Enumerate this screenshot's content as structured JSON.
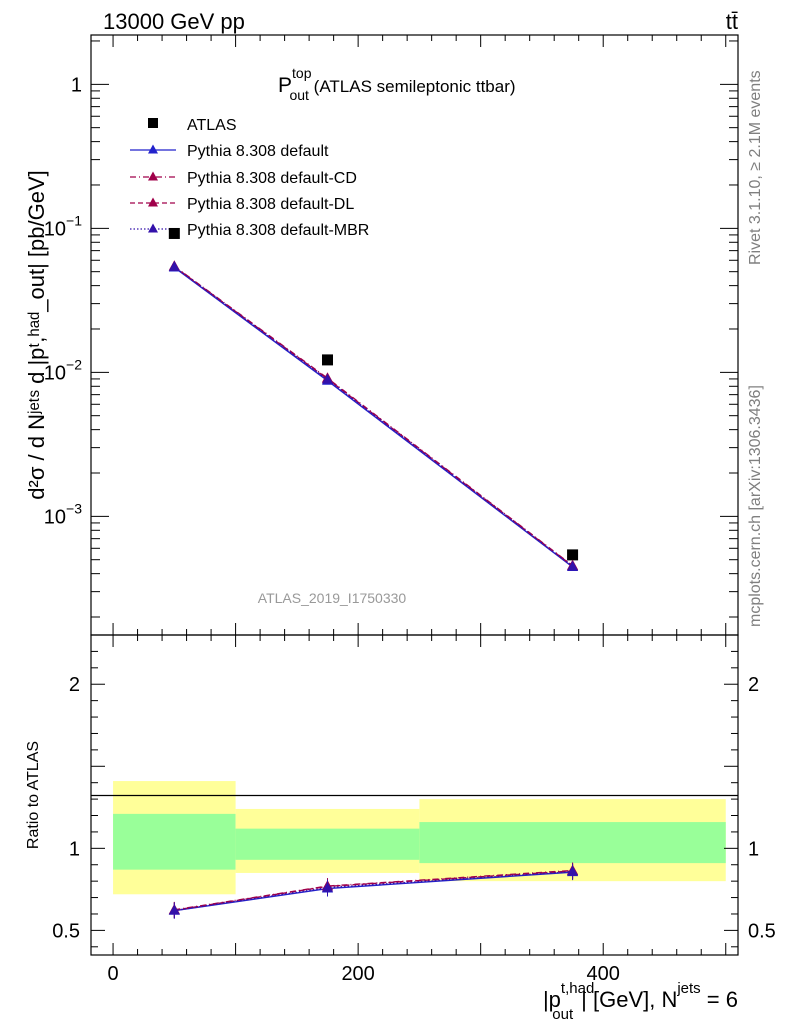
{
  "header": {
    "energy": "13000 GeV pp",
    "process": "tt̄"
  },
  "side_labels": {
    "rivet": "Rivet 3.1.10, ≥ 2.1M events",
    "mcplots": "mcplots.cern.ch [arXiv:1306.3436]"
  },
  "chart_data": [
    {
      "type": "scatter",
      "panel": "main",
      "title": {
        "main": "P",
        "sup": "top",
        "sub": "out",
        "rest": " (ATLAS semileptonic ttbar)"
      },
      "watermark": "ATLAS_2019_I1750330",
      "ylabel": "d²σ / d Nʲᵉᵗˢ d |pᵗ,ʰᵃᵈ_out| [pb/GeV]",
      "yscale": "log",
      "ylim": [
        0.00015,
        2.2
      ],
      "xlim": [
        -18,
        510
      ],
      "y_tick_labels": [
        {
          "value": 1,
          "base": "1",
          "exp": ""
        },
        {
          "value": 0.1,
          "base": "10",
          "exp": "−1"
        },
        {
          "value": 0.01,
          "base": "10",
          "exp": "−2"
        },
        {
          "value": 0.001,
          "base": "10",
          "exp": "−3"
        }
      ],
      "legend_position": "top-left",
      "series": [
        {
          "name": "ATLAS",
          "color": "#000000",
          "marker": "square",
          "x": [
            50,
            175,
            375
          ],
          "y": [
            0.0921,
            0.0122,
            0.00054
          ]
        },
        {
          "name": "Pythia 8.308 default",
          "color": "#2222cc",
          "line": "solid",
          "marker": "triangle",
          "x": [
            50,
            175,
            375
          ],
          "y": [
            0.0535,
            0.00875,
            0.000445
          ]
        },
        {
          "name": "Pythia 8.308 default-CD",
          "color": "#a0004a",
          "line": "dashdot",
          "marker": "triangle",
          "x": [
            50,
            175,
            375
          ],
          "y": [
            0.0545,
            0.0091,
            0.000455
          ]
        },
        {
          "name": "Pythia 8.308 default-DL",
          "color": "#a0004a",
          "line": "dashed",
          "marker": "triangle",
          "x": [
            50,
            175,
            375
          ],
          "y": [
            0.0542,
            0.009,
            0.000452
          ]
        },
        {
          "name": "Pythia 8.308 default-MBR",
          "color": "#3311aa",
          "line": "dotted",
          "marker": "triangle",
          "x": [
            50,
            175,
            375
          ],
          "y": [
            0.054,
            0.0089,
            0.000448
          ]
        }
      ]
    },
    {
      "type": "line",
      "panel": "ratio",
      "ylabel": "Ratio to ATLAS",
      "ylim": [
        0.35,
        2.3
      ],
      "xlim": [
        -18,
        510
      ],
      "xlabel": {
        "p": "|p",
        "sup": "t,had",
        "sub": "out",
        "rest": "| [GeV], N",
        "sup2": "jets",
        "tail": " = 6"
      },
      "x_tick_labels": [
        {
          "value": 0,
          "label": "0"
        },
        {
          "value": 200,
          "label": "200"
        },
        {
          "value": 400,
          "label": "400"
        }
      ],
      "y_tick_labels": [
        {
          "value": 0.5,
          "label": "0.5"
        },
        {
          "value": 1,
          "label": "1"
        },
        {
          "value": 2,
          "label": "2"
        }
      ],
      "bands": [
        {
          "x0": 0,
          "x1": 100,
          "yellow": [
            0.72,
            1.41
          ],
          "green": [
            0.87,
            1.21
          ]
        },
        {
          "x0": 100,
          "x1": 250,
          "yellow": [
            0.85,
            1.24
          ],
          "green": [
            0.93,
            1.12
          ]
        },
        {
          "x0": 250,
          "x1": 500,
          "yellow": [
            0.8,
            1.3
          ],
          "green": [
            0.91,
            1.16
          ]
        }
      ],
      "band_colors": {
        "yellow": "#ffff99",
        "green": "#99ff99"
      },
      "series": [
        {
          "name": "Pythia 8.308 default",
          "color": "#2222cc",
          "line": "solid",
          "x": [
            50,
            175,
            375
          ],
          "y": [
            0.62,
            0.755,
            0.855
          ]
        },
        {
          "name": "Pythia 8.308 default-CD",
          "color": "#a0004a",
          "line": "dashdot",
          "x": [
            50,
            175,
            375
          ],
          "y": [
            0.625,
            0.77,
            0.865
          ]
        },
        {
          "name": "Pythia 8.308 default-DL",
          "color": "#a0004a",
          "line": "dashed",
          "x": [
            50,
            175,
            375
          ],
          "y": [
            0.623,
            0.768,
            0.862
          ]
        },
        {
          "name": "Pythia 8.308 default-MBR",
          "color": "#3311aa",
          "line": "dotted",
          "x": [
            50,
            175,
            375
          ],
          "y": [
            0.621,
            0.76,
            0.858
          ]
        }
      ]
    }
  ]
}
